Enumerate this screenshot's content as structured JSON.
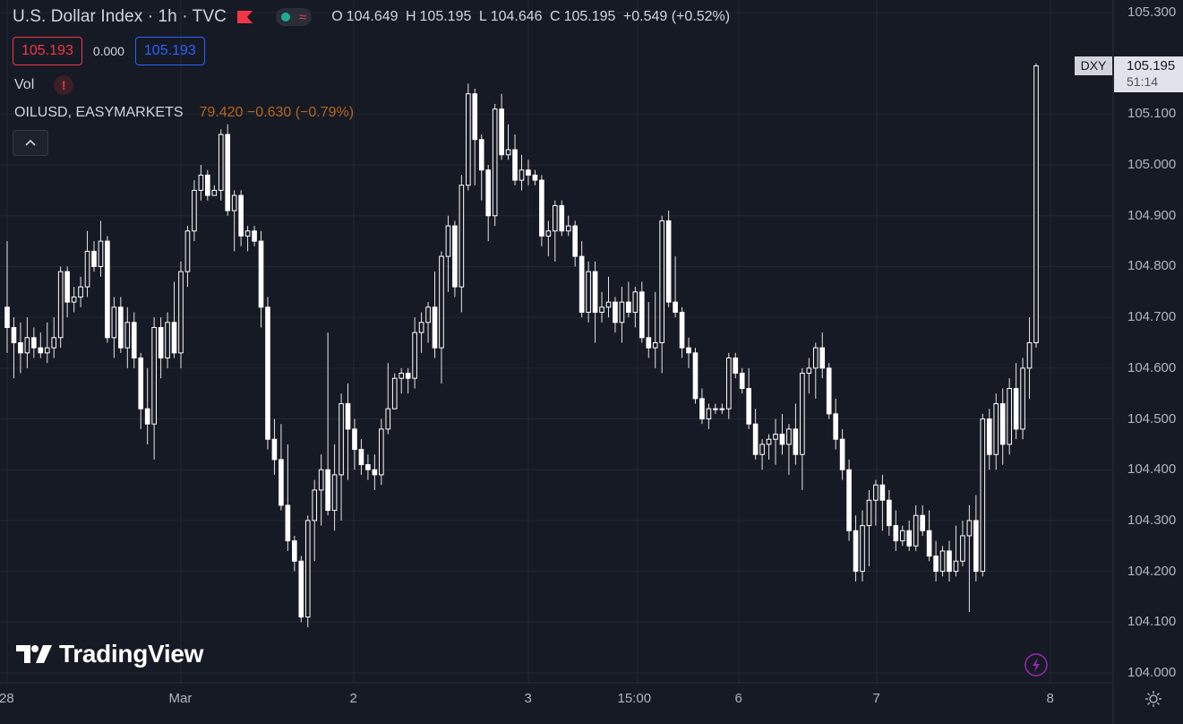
{
  "header": {
    "title": "U.S. Dollar Index · 1h · TVC",
    "open_label": "O",
    "open": "104.649",
    "high_label": "H",
    "high": "105.195",
    "low_label": "L",
    "low": "104.646",
    "close_label": "C",
    "close": "105.195",
    "change": "+0.549 (+0.52%)",
    "flag_icon": "red-flag-icon",
    "status_icon": "market-open-dot-icon",
    "wave_icon": "wave-icon"
  },
  "price_boxes": {
    "sell": "105.193",
    "spread": "0.000",
    "buy": "105.193"
  },
  "indicators": {
    "vol_label": "Vol",
    "vol_warning_icon": "!",
    "oil_symbol": "OILUSD, EASYMARKETS",
    "oil_values": "79.420 −0.630 (−0.79%)",
    "collapse_icon": "^"
  },
  "brand": {
    "name": "TradingView"
  },
  "current_price": {
    "symbol": "DXY",
    "value": "105.195",
    "countdown": "51:14"
  },
  "colors": {
    "background": "#161a25",
    "candle": "#ffffff",
    "grid": "#232733",
    "text": "#b2b5be",
    "sell": "#f23645",
    "buy": "#2962ff"
  },
  "chart_data": {
    "type": "candlestick",
    "title": "U.S. Dollar Index · 1h · TVC",
    "ylim": [
      104.0,
      105.3
    ],
    "y_ticks": [
      "105.300",
      "105.100",
      "105.000",
      "104.900",
      "104.800",
      "104.700",
      "104.600",
      "104.500",
      "104.400",
      "104.300",
      "104.200",
      "104.100",
      "104.000"
    ],
    "x_ticks": [
      "28",
      "Mar",
      "2",
      "3",
      "15:00",
      "6",
      "7",
      "8"
    ],
    "candles": [
      [
        104.72,
        104.85,
        104.63,
        104.68
      ],
      [
        104.68,
        104.7,
        104.58,
        104.65
      ],
      [
        104.65,
        104.69,
        104.59,
        104.63
      ],
      [
        104.63,
        104.7,
        104.6,
        104.66
      ],
      [
        104.66,
        104.68,
        104.62,
        104.64
      ],
      [
        104.64,
        104.67,
        104.62,
        104.63
      ],
      [
        104.63,
        104.69,
        104.61,
        104.64
      ],
      [
        104.64,
        104.7,
        104.62,
        104.66
      ],
      [
        104.66,
        104.8,
        104.64,
        104.79
      ],
      [
        104.79,
        104.8,
        104.7,
        104.73
      ],
      [
        104.73,
        104.76,
        104.71,
        104.74
      ],
      [
        104.74,
        104.78,
        104.72,
        104.76
      ],
      [
        104.76,
        104.87,
        104.74,
        104.83
      ],
      [
        104.83,
        104.85,
        104.79,
        104.8
      ],
      [
        104.8,
        104.89,
        104.78,
        104.85
      ],
      [
        104.85,
        104.86,
        104.65,
        104.66
      ],
      [
        104.66,
        104.74,
        104.62,
        104.72
      ],
      [
        104.72,
        104.74,
        104.63,
        104.64
      ],
      [
        104.64,
        104.72,
        104.6,
        104.69
      ],
      [
        104.69,
        104.71,
        104.6,
        104.62
      ],
      [
        104.62,
        104.63,
        104.48,
        104.52
      ],
      [
        104.52,
        104.6,
        104.45,
        104.49
      ],
      [
        104.49,
        104.7,
        104.42,
        104.68
      ],
      [
        104.68,
        104.7,
        104.58,
        104.62
      ],
      [
        104.62,
        104.71,
        104.6,
        104.69
      ],
      [
        104.69,
        104.77,
        104.62,
        104.63
      ],
      [
        104.63,
        104.81,
        104.6,
        104.79
      ],
      [
        104.79,
        104.88,
        104.76,
        104.87
      ],
      [
        104.87,
        104.97,
        104.85,
        104.95
      ],
      [
        104.95,
        105.0,
        104.93,
        104.98
      ],
      [
        104.98,
        104.99,
        104.93,
        104.94
      ],
      [
        104.94,
        104.96,
        104.94,
        104.95
      ],
      [
        104.95,
        105.07,
        104.93,
        105.06
      ],
      [
        105.06,
        105.08,
        104.9,
        104.91
      ],
      [
        104.91,
        104.95,
        104.83,
        104.94
      ],
      [
        104.94,
        104.95,
        104.84,
        104.86
      ],
      [
        104.86,
        104.88,
        104.83,
        104.87
      ],
      [
        104.87,
        104.88,
        104.84,
        104.85
      ],
      [
        104.85,
        104.87,
        104.68,
        104.72
      ],
      [
        104.72,
        104.74,
        104.44,
        104.46
      ],
      [
        104.46,
        104.5,
        104.39,
        104.42
      ],
      [
        104.42,
        104.49,
        104.32,
        104.33
      ],
      [
        104.33,
        104.45,
        104.24,
        104.26
      ],
      [
        104.26,
        104.27,
        104.2,
        104.22
      ],
      [
        104.22,
        104.23,
        104.1,
        104.11
      ],
      [
        104.11,
        104.31,
        104.09,
        104.3
      ],
      [
        104.3,
        104.38,
        104.22,
        104.36
      ],
      [
        104.36,
        104.43,
        104.29,
        104.4
      ],
      [
        104.4,
        104.67,
        104.31,
        104.32
      ],
      [
        104.32,
        104.45,
        104.28,
        104.39
      ],
      [
        104.39,
        104.55,
        104.3,
        104.53
      ],
      [
        104.53,
        104.57,
        104.38,
        104.48
      ],
      [
        104.48,
        104.5,
        104.4,
        104.44
      ],
      [
        104.44,
        104.46,
        104.39,
        104.41
      ],
      [
        104.41,
        104.43,
        104.38,
        104.4
      ],
      [
        104.4,
        104.43,
        104.36,
        104.39
      ],
      [
        104.39,
        104.5,
        104.37,
        104.48
      ],
      [
        104.48,
        104.61,
        104.47,
        104.52
      ],
      [
        104.52,
        104.59,
        104.52,
        104.58
      ],
      [
        104.58,
        104.6,
        104.55,
        104.59
      ],
      [
        104.59,
        104.6,
        104.55,
        104.58
      ],
      [
        104.58,
        104.7,
        104.56,
        104.67
      ],
      [
        104.67,
        104.71,
        104.63,
        104.69
      ],
      [
        104.69,
        104.73,
        104.65,
        104.72
      ],
      [
        104.72,
        104.79,
        104.62,
        104.64
      ],
      [
        104.64,
        104.83,
        104.57,
        104.82
      ],
      [
        104.82,
        104.9,
        104.75,
        104.88
      ],
      [
        104.88,
        104.89,
        104.74,
        104.76
      ],
      [
        104.76,
        104.98,
        104.71,
        104.96
      ],
      [
        104.96,
        105.16,
        104.95,
        105.14
      ],
      [
        105.14,
        105.15,
        104.96,
        105.05
      ],
      [
        105.05,
        105.06,
        104.93,
        104.99
      ],
      [
        104.99,
        105.0,
        104.85,
        104.9
      ],
      [
        104.9,
        105.12,
        104.88,
        105.11
      ],
      [
        105.11,
        105.14,
        105.01,
        105.02
      ],
      [
        105.02,
        105.08,
        105.01,
        105.03
      ],
      [
        105.03,
        105.06,
        104.96,
        104.97
      ],
      [
        104.97,
        105.02,
        104.95,
        104.99
      ],
      [
        104.99,
        105.01,
        104.96,
        104.98
      ],
      [
        104.98,
        104.99,
        104.96,
        104.97
      ],
      [
        104.97,
        104.98,
        104.84,
        104.86
      ],
      [
        104.86,
        104.89,
        104.82,
        104.87
      ],
      [
        104.87,
        104.93,
        104.81,
        104.92
      ],
      [
        104.92,
        104.93,
        104.86,
        104.87
      ],
      [
        104.87,
        104.9,
        104.86,
        104.88
      ],
      [
        104.88,
        104.89,
        104.8,
        104.82
      ],
      [
        104.82,
        104.85,
        104.7,
        104.71
      ],
      [
        104.71,
        104.81,
        104.69,
        104.79
      ],
      [
        104.79,
        104.81,
        104.65,
        104.71
      ],
      [
        104.71,
        104.75,
        104.69,
        104.72
      ],
      [
        104.72,
        104.78,
        104.7,
        104.73
      ],
      [
        104.73,
        104.74,
        104.67,
        104.69
      ],
      [
        104.69,
        104.76,
        104.65,
        104.73
      ],
      [
        104.73,
        104.77,
        104.7,
        104.71
      ],
      [
        104.71,
        104.76,
        104.68,
        104.75
      ],
      [
        104.75,
        104.77,
        104.65,
        104.66
      ],
      [
        104.66,
        104.73,
        104.62,
        104.64
      ],
      [
        104.64,
        104.75,
        104.6,
        104.65
      ],
      [
        104.65,
        104.9,
        104.59,
        104.89
      ],
      [
        104.89,
        104.91,
        104.72,
        104.73
      ],
      [
        104.73,
        104.82,
        104.7,
        104.71
      ],
      [
        104.71,
        104.72,
        104.62,
        104.64
      ],
      [
        104.64,
        104.66,
        104.6,
        104.63
      ],
      [
        104.63,
        104.64,
        104.53,
        104.54
      ],
      [
        104.54,
        104.56,
        104.49,
        104.5
      ],
      [
        104.5,
        104.53,
        104.48,
        104.52
      ],
      [
        104.52,
        104.53,
        104.51,
        104.52
      ],
      [
        104.52,
        104.53,
        104.51,
        104.52
      ],
      [
        104.52,
        104.63,
        104.5,
        104.62
      ],
      [
        104.62,
        104.63,
        104.58,
        104.59
      ],
      [
        104.59,
        104.6,
        104.55,
        104.56
      ],
      [
        104.56,
        104.6,
        104.48,
        104.49
      ],
      [
        104.49,
        104.52,
        104.42,
        104.43
      ],
      [
        104.43,
        104.46,
        104.4,
        104.45
      ],
      [
        104.45,
        104.47,
        104.42,
        104.46
      ],
      [
        104.46,
        104.5,
        104.41,
        104.47
      ],
      [
        104.47,
        104.51,
        104.43,
        104.45
      ],
      [
        104.45,
        104.49,
        104.39,
        104.48
      ],
      [
        104.48,
        104.53,
        104.41,
        104.43
      ],
      [
        104.43,
        104.6,
        104.36,
        104.59
      ],
      [
        104.59,
        104.62,
        104.55,
        104.6
      ],
      [
        104.6,
        104.65,
        104.54,
        104.64
      ],
      [
        104.64,
        104.67,
        104.58,
        104.6
      ],
      [
        104.6,
        104.61,
        104.5,
        104.51
      ],
      [
        104.51,
        104.54,
        104.44,
        104.46
      ],
      [
        104.46,
        104.48,
        104.38,
        104.4
      ],
      [
        104.4,
        104.42,
        104.26,
        104.28
      ],
      [
        104.28,
        104.31,
        104.18,
        104.2
      ],
      [
        104.2,
        104.32,
        104.18,
        104.29
      ],
      [
        104.29,
        104.36,
        104.21,
        104.34
      ],
      [
        104.34,
        104.38,
        104.29,
        104.37
      ],
      [
        104.37,
        104.39,
        104.28,
        104.34
      ],
      [
        104.34,
        104.36,
        104.27,
        104.29
      ],
      [
        104.29,
        104.32,
        104.24,
        104.26
      ],
      [
        104.26,
        104.29,
        104.25,
        104.28
      ],
      [
        104.28,
        104.3,
        104.24,
        104.25
      ],
      [
        104.25,
        104.33,
        104.24,
        104.31
      ],
      [
        104.31,
        104.33,
        104.27,
        104.28
      ],
      [
        104.28,
        104.32,
        104.22,
        104.23
      ],
      [
        104.23,
        104.26,
        104.18,
        104.2
      ],
      [
        104.2,
        104.25,
        104.19,
        104.24
      ],
      [
        104.24,
        104.26,
        104.18,
        104.2
      ],
      [
        104.2,
        104.29,
        104.19,
        104.22
      ],
      [
        104.22,
        104.3,
        104.21,
        104.27
      ],
      [
        104.27,
        104.33,
        104.12,
        104.3
      ],
      [
        104.3,
        104.35,
        104.18,
        104.2
      ],
      [
        104.2,
        104.51,
        104.19,
        104.5
      ],
      [
        104.5,
        104.52,
        104.4,
        104.43
      ],
      [
        104.43,
        104.55,
        104.4,
        104.53
      ],
      [
        104.53,
        104.56,
        104.41,
        104.45
      ],
      [
        104.45,
        104.58,
        104.43,
        104.56
      ],
      [
        104.56,
        104.61,
        104.46,
        104.48
      ],
      [
        104.48,
        104.62,
        104.46,
        104.6
      ],
      [
        104.6,
        104.7,
        104.54,
        104.65
      ],
      [
        104.65,
        105.2,
        104.64,
        105.195
      ]
    ]
  }
}
